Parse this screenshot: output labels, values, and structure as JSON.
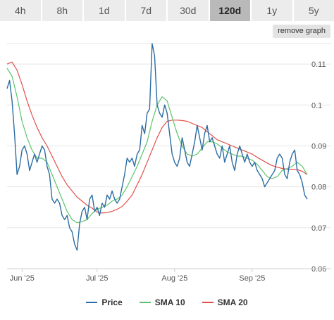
{
  "tabs": [
    {
      "label": "4h",
      "active": false
    },
    {
      "label": "8h",
      "active": false
    },
    {
      "label": "1d",
      "active": false
    },
    {
      "label": "7d",
      "active": false
    },
    {
      "label": "30d",
      "active": false
    },
    {
      "label": "120d",
      "active": true
    },
    {
      "label": "1y",
      "active": false
    },
    {
      "label": "5y",
      "active": false
    }
  ],
  "remove_graph_label": "remove graph",
  "chart_data": {
    "type": "line",
    "x_axis": {
      "start": "2025-05-26",
      "end": "2025-09-23",
      "tick_labels": [
        "Jun '25",
        "Jul '25",
        "Aug '25",
        "Sep '25"
      ],
      "tick_dates": [
        "2025-06-01",
        "2025-07-01",
        "2025-08-01",
        "2025-09-01"
      ]
    },
    "y_axis": {
      "ylim": [
        0.06,
        0.115
      ],
      "tick_labels": [
        "0.06",
        "0.07",
        "0.08",
        "0.09",
        "0.1",
        "0.11"
      ],
      "tick_values": [
        0.06,
        0.07,
        0.08,
        0.09,
        0.1,
        0.11
      ],
      "position": "right"
    },
    "grid": "horizontal",
    "legend_position": "bottom",
    "series": [
      {
        "name": "Price",
        "color": "#2b6ca3",
        "points": [
          [
            "2025-05-26",
            0.104
          ],
          [
            "2025-05-27",
            0.106
          ],
          [
            "2025-05-28",
            0.101
          ],
          [
            "2025-05-29",
            0.093
          ],
          [
            "2025-05-30",
            0.083
          ],
          [
            "2025-05-31",
            0.085
          ],
          [
            "2025-06-01",
            0.089
          ],
          [
            "2025-06-02",
            0.09
          ],
          [
            "2025-06-03",
            0.088
          ],
          [
            "2025-06-04",
            0.084
          ],
          [
            "2025-06-05",
            0.086
          ],
          [
            "2025-06-06",
            0.088
          ],
          [
            "2025-06-07",
            0.086
          ],
          [
            "2025-06-08",
            0.088
          ],
          [
            "2025-06-09",
            0.09
          ],
          [
            "2025-06-10",
            0.089
          ],
          [
            "2025-06-11",
            0.085
          ],
          [
            "2025-06-12",
            0.083
          ],
          [
            "2025-06-13",
            0.077
          ],
          [
            "2025-06-14",
            0.076
          ],
          [
            "2025-06-15",
            0.077
          ],
          [
            "2025-06-16",
            0.076
          ],
          [
            "2025-06-17",
            0.073
          ],
          [
            "2025-06-18",
            0.072
          ],
          [
            "2025-06-19",
            0.073
          ],
          [
            "2025-06-20",
            0.07
          ],
          [
            "2025-06-21",
            0.069
          ],
          [
            "2025-06-22",
            0.066
          ],
          [
            "2025-06-23",
            0.0645
          ],
          [
            "2025-06-24",
            0.071
          ],
          [
            "2025-06-25",
            0.074
          ],
          [
            "2025-06-26",
            0.075
          ],
          [
            "2025-06-27",
            0.072
          ],
          [
            "2025-06-28",
            0.077
          ],
          [
            "2025-06-29",
            0.078
          ],
          [
            "2025-06-30",
            0.074
          ],
          [
            "2025-07-01",
            0.075
          ],
          [
            "2025-07-02",
            0.073
          ],
          [
            "2025-07-03",
            0.076
          ],
          [
            "2025-07-04",
            0.075
          ],
          [
            "2025-07-05",
            0.078
          ],
          [
            "2025-07-06",
            0.077
          ],
          [
            "2025-07-07",
            0.079
          ],
          [
            "2025-07-08",
            0.077
          ],
          [
            "2025-07-09",
            0.076
          ],
          [
            "2025-07-10",
            0.077
          ],
          [
            "2025-07-11",
            0.08
          ],
          [
            "2025-07-12",
            0.083
          ],
          [
            "2025-07-13",
            0.087
          ],
          [
            "2025-07-14",
            0.086
          ],
          [
            "2025-07-15",
            0.087
          ],
          [
            "2025-07-16",
            0.085
          ],
          [
            "2025-07-17",
            0.088
          ],
          [
            "2025-07-18",
            0.089
          ],
          [
            "2025-07-19",
            0.095
          ],
          [
            "2025-07-20",
            0.093
          ],
          [
            "2025-07-21",
            0.098
          ],
          [
            "2025-07-22",
            0.099
          ],
          [
            "2025-07-23",
            0.115
          ],
          [
            "2025-07-24",
            0.112
          ],
          [
            "2025-07-25",
            0.1
          ],
          [
            "2025-07-26",
            0.098
          ],
          [
            "2025-07-27",
            0.097
          ],
          [
            "2025-07-28",
            0.1
          ],
          [
            "2025-07-29",
            0.098
          ],
          [
            "2025-07-30",
            0.093
          ],
          [
            "2025-07-31",
            0.088
          ],
          [
            "2025-08-01",
            0.086
          ],
          [
            "2025-08-02",
            0.085
          ],
          [
            "2025-08-03",
            0.087
          ],
          [
            "2025-08-04",
            0.092
          ],
          [
            "2025-08-05",
            0.089
          ],
          [
            "2025-08-06",
            0.086
          ],
          [
            "2025-08-07",
            0.085
          ],
          [
            "2025-08-08",
            0.088
          ],
          [
            "2025-08-09",
            0.091
          ],
          [
            "2025-08-10",
            0.095
          ],
          [
            "2025-08-11",
            0.092
          ],
          [
            "2025-08-12",
            0.089
          ],
          [
            "2025-08-13",
            0.093
          ],
          [
            "2025-08-14",
            0.095
          ],
          [
            "2025-08-15",
            0.091
          ],
          [
            "2025-08-16",
            0.092
          ],
          [
            "2025-08-17",
            0.09
          ],
          [
            "2025-08-18",
            0.088
          ],
          [
            "2025-08-19",
            0.087
          ],
          [
            "2025-08-20",
            0.09
          ],
          [
            "2025-08-21",
            0.086
          ],
          [
            "2025-08-22",
            0.088
          ],
          [
            "2025-08-23",
            0.09
          ],
          [
            "2025-08-24",
            0.086
          ],
          [
            "2025-08-25",
            0.084
          ],
          [
            "2025-08-26",
            0.088
          ],
          [
            "2025-08-27",
            0.09
          ],
          [
            "2025-08-28",
            0.088
          ],
          [
            "2025-08-29",
            0.086
          ],
          [
            "2025-08-30",
            0.088
          ],
          [
            "2025-08-31",
            0.086
          ],
          [
            "2025-09-01",
            0.085
          ],
          [
            "2025-09-02",
            0.086
          ],
          [
            "2025-09-03",
            0.084
          ],
          [
            "2025-09-04",
            0.083
          ],
          [
            "2025-09-05",
            0.082
          ],
          [
            "2025-09-06",
            0.08
          ],
          [
            "2025-09-07",
            0.081
          ],
          [
            "2025-09-08",
            0.082
          ],
          [
            "2025-09-09",
            0.083
          ],
          [
            "2025-09-10",
            0.084
          ],
          [
            "2025-09-11",
            0.087
          ],
          [
            "2025-09-12",
            0.088
          ],
          [
            "2025-09-13",
            0.087
          ],
          [
            "2025-09-14",
            0.083
          ],
          [
            "2025-09-15",
            0.082
          ],
          [
            "2025-09-16",
            0.086
          ],
          [
            "2025-09-17",
            0.088
          ],
          [
            "2025-09-18",
            0.089
          ],
          [
            "2025-09-19",
            0.084
          ],
          [
            "2025-09-20",
            0.083
          ],
          [
            "2025-09-21",
            0.081
          ],
          [
            "2025-09-22",
            0.078
          ],
          [
            "2025-09-23",
            0.077
          ]
        ]
      },
      {
        "name": "SMA 10",
        "color": "#5cc46c",
        "points": [
          [
            "2025-05-26",
            0.109
          ],
          [
            "2025-05-28",
            0.107
          ],
          [
            "2025-05-30",
            0.102
          ],
          [
            "2025-06-01",
            0.096
          ],
          [
            "2025-06-03",
            0.092
          ],
          [
            "2025-06-05",
            0.089
          ],
          [
            "2025-06-07",
            0.087
          ],
          [
            "2025-06-09",
            0.087
          ],
          [
            "2025-06-11",
            0.086
          ],
          [
            "2025-06-13",
            0.083
          ],
          [
            "2025-06-15",
            0.08
          ],
          [
            "2025-06-17",
            0.077
          ],
          [
            "2025-06-19",
            0.074
          ],
          [
            "2025-06-21",
            0.072
          ],
          [
            "2025-06-23",
            0.0712
          ],
          [
            "2025-06-25",
            0.0715
          ],
          [
            "2025-06-27",
            0.072
          ],
          [
            "2025-06-29",
            0.0735
          ],
          [
            "2025-07-01",
            0.0745
          ],
          [
            "2025-07-03",
            0.075
          ],
          [
            "2025-07-05",
            0.0755
          ],
          [
            "2025-07-07",
            0.0765
          ],
          [
            "2025-07-09",
            0.077
          ],
          [
            "2025-07-11",
            0.078
          ],
          [
            "2025-07-13",
            0.08
          ],
          [
            "2025-07-15",
            0.0825
          ],
          [
            "2025-07-17",
            0.085
          ],
          [
            "2025-07-19",
            0.088
          ],
          [
            "2025-07-21",
            0.091
          ],
          [
            "2025-07-23",
            0.096
          ],
          [
            "2025-07-25",
            0.1
          ],
          [
            "2025-07-27",
            0.102
          ],
          [
            "2025-07-29",
            0.101
          ],
          [
            "2025-07-31",
            0.097
          ],
          [
            "2025-08-02",
            0.093
          ],
          [
            "2025-08-04",
            0.09
          ],
          [
            "2025-08-06",
            0.088
          ],
          [
            "2025-08-08",
            0.0875
          ],
          [
            "2025-08-10",
            0.088
          ],
          [
            "2025-08-12",
            0.0895
          ],
          [
            "2025-08-14",
            0.091
          ],
          [
            "2025-08-16",
            0.091
          ],
          [
            "2025-08-18",
            0.0905
          ],
          [
            "2025-08-20",
            0.0895
          ],
          [
            "2025-08-22",
            0.0885
          ],
          [
            "2025-08-24",
            0.088
          ],
          [
            "2025-08-26",
            0.0875
          ],
          [
            "2025-08-28",
            0.0875
          ],
          [
            "2025-08-30",
            0.087
          ],
          [
            "2025-09-01",
            0.0865
          ],
          [
            "2025-09-03",
            0.0855
          ],
          [
            "2025-09-05",
            0.084
          ],
          [
            "2025-09-07",
            0.0825
          ],
          [
            "2025-09-09",
            0.082
          ],
          [
            "2025-09-11",
            0.0825
          ],
          [
            "2025-09-13",
            0.084
          ],
          [
            "2025-09-15",
            0.0845
          ],
          [
            "2025-09-17",
            0.085
          ],
          [
            "2025-09-19",
            0.086
          ],
          [
            "2025-09-21",
            0.085
          ],
          [
            "2025-09-23",
            0.083
          ]
        ]
      },
      {
        "name": "SMA 20",
        "color": "#e0504a",
        "points": [
          [
            "2025-05-26",
            0.11
          ],
          [
            "2025-05-28",
            0.1105
          ],
          [
            "2025-05-30",
            0.1085
          ],
          [
            "2025-06-01",
            0.105
          ],
          [
            "2025-06-03",
            0.101
          ],
          [
            "2025-06-05",
            0.0975
          ],
          [
            "2025-06-07",
            0.0945
          ],
          [
            "2025-06-09",
            0.092
          ],
          [
            "2025-06-11",
            0.09
          ],
          [
            "2025-06-13",
            0.0875
          ],
          [
            "2025-06-15",
            0.085
          ],
          [
            "2025-06-17",
            0.0825
          ],
          [
            "2025-06-19",
            0.0805
          ],
          [
            "2025-06-21",
            0.079
          ],
          [
            "2025-06-23",
            0.0775
          ],
          [
            "2025-06-25",
            0.0765
          ],
          [
            "2025-06-27",
            0.0755
          ],
          [
            "2025-06-29",
            0.0748
          ],
          [
            "2025-07-01",
            0.0738
          ],
          [
            "2025-07-03",
            0.0736
          ],
          [
            "2025-07-05",
            0.0737
          ],
          [
            "2025-07-07",
            0.074
          ],
          [
            "2025-07-09",
            0.0745
          ],
          [
            "2025-07-11",
            0.0752
          ],
          [
            "2025-07-13",
            0.0765
          ],
          [
            "2025-07-15",
            0.078
          ],
          [
            "2025-07-17",
            0.0805
          ],
          [
            "2025-07-19",
            0.083
          ],
          [
            "2025-07-21",
            0.086
          ],
          [
            "2025-07-23",
            0.089
          ],
          [
            "2025-07-25",
            0.092
          ],
          [
            "2025-07-27",
            0.0945
          ],
          [
            "2025-07-29",
            0.096
          ],
          [
            "2025-07-31",
            0.0963
          ],
          [
            "2025-08-02",
            0.0963
          ],
          [
            "2025-08-04",
            0.0962
          ],
          [
            "2025-08-06",
            0.096
          ],
          [
            "2025-08-08",
            0.0955
          ],
          [
            "2025-08-10",
            0.095
          ],
          [
            "2025-08-12",
            0.0945
          ],
          [
            "2025-08-14",
            0.0935
          ],
          [
            "2025-08-16",
            0.0925
          ],
          [
            "2025-08-18",
            0.0915
          ],
          [
            "2025-08-20",
            0.091
          ],
          [
            "2025-08-22",
            0.0905
          ],
          [
            "2025-08-24",
            0.09
          ],
          [
            "2025-08-26",
            0.0895
          ],
          [
            "2025-08-28",
            0.089
          ],
          [
            "2025-08-30",
            0.0885
          ],
          [
            "2025-09-01",
            0.088
          ],
          [
            "2025-09-03",
            0.0872
          ],
          [
            "2025-09-05",
            0.0865
          ],
          [
            "2025-09-07",
            0.0858
          ],
          [
            "2025-09-09",
            0.0852
          ],
          [
            "2025-09-11",
            0.0848
          ],
          [
            "2025-09-13",
            0.0845
          ],
          [
            "2025-09-15",
            0.0843
          ],
          [
            "2025-09-17",
            0.0843
          ],
          [
            "2025-09-19",
            0.0842
          ],
          [
            "2025-09-21",
            0.0838
          ],
          [
            "2025-09-23",
            0.083
          ]
        ]
      }
    ]
  }
}
